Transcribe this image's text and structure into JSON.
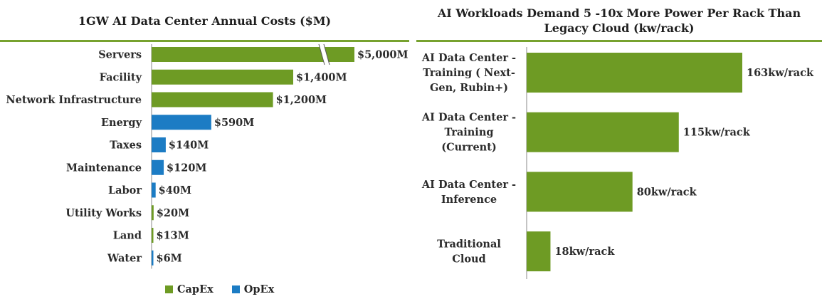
{
  "colors": {
    "capex": "#6e9b24",
    "opex": "#1c7cc4",
    "accent_rule": "#77a22f"
  },
  "chart_data": [
    {
      "type": "bar",
      "orientation": "horizontal",
      "title": "1GW AI Data Center Annual Costs ($M)",
      "categories": [
        "Servers",
        "Facility",
        "Network Infrastructure",
        "Energy",
        "Taxes",
        "Maintenance",
        "Labor",
        "Utility Works",
        "Land",
        "Water"
      ],
      "values": [
        5000,
        1400,
        1200,
        590,
        140,
        120,
        40,
        20,
        13,
        6
      ],
      "value_labels": [
        "$5,000M",
        "$1,400M",
        "$1,200M",
        "$590M",
        "$140M",
        "$120M",
        "$40M",
        "$20M",
        "$13M",
        "$6M"
      ],
      "group": [
        "CapEx",
        "CapEx",
        "CapEx",
        "OpEx",
        "OpEx",
        "OpEx",
        "OpEx",
        "CapEx",
        "CapEx",
        "OpEx"
      ],
      "axis_break": "Servers bar truncated with break marks",
      "legend": [
        "CapEx",
        "OpEx"
      ],
      "legend_position": "bottom"
    },
    {
      "type": "bar",
      "orientation": "horizontal",
      "title": "AI Workloads Demand 5 -10x More Power Per Rack Than Legacy Cloud (kw/rack)",
      "categories": [
        [
          "AI Data Center -",
          "Training ( Next-",
          "Gen, Rubin+)"
        ],
        [
          "AI Data Center -",
          "Training",
          "(Current)"
        ],
        [
          "AI Data Center -",
          "Inference"
        ],
        [
          "Traditional",
          "Cloud"
        ]
      ],
      "values": [
        163,
        115,
        80,
        18
      ],
      "value_labels": [
        "163kw/rack",
        "115kw/rack",
        "80kw/rack",
        "18kw/rack"
      ]
    }
  ]
}
